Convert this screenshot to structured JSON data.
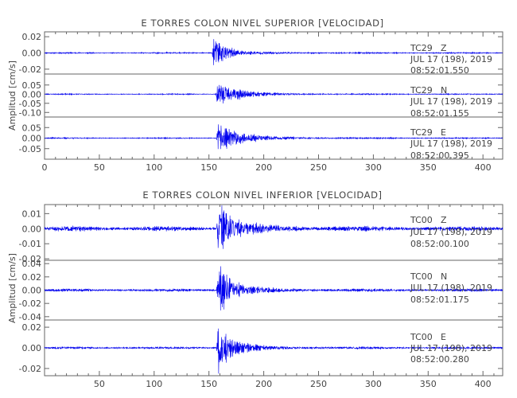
{
  "chart_data": [
    {
      "type": "line",
      "title": "E TORRES COLON NIVEL SUPERIOR [VELOCIDAD]",
      "ylabel": "Amplitud [cm/s]",
      "xlim": [
        0,
        418
      ],
      "xticks": [
        0,
        50,
        100,
        150,
        200,
        250,
        300,
        350,
        400
      ],
      "series_color": "#0000ee",
      "traces": [
        {
          "station": "TC29",
          "component": "Z",
          "date": "JUL 17 (198), 2019",
          "time": "08:52:01.550",
          "ylim": [
            -0.026,
            0.026
          ],
          "yticks": [
            -0.02,
            0.0,
            0.02
          ],
          "ytick_labels": [
            "-0.02",
            "0.00",
            "0.02"
          ],
          "wave": {
            "onset": 153,
            "peak": 0.018,
            "decay": 11,
            "noise": 0.0006,
            "seed": 11
          }
        },
        {
          "station": "TC29",
          "component": "N",
          "date": "JUL 17 (198), 2019",
          "time": "08:52:01.155",
          "ylim": [
            -0.125,
            0.11
          ],
          "yticks": [
            -0.1,
            -0.05,
            0.0,
            0.05
          ],
          "ytick_labels": [
            "-0.10",
            "-0.05",
            "0.00",
            "0.05"
          ],
          "wave": {
            "onset": 156,
            "peak": 0.06,
            "decay": 17,
            "noise": 0.002,
            "seed": 23
          }
        },
        {
          "station": "TC29",
          "component": "E",
          "date": "JUL 17 (198), 2019",
          "time": "08:52:00.395",
          "ylim": [
            -0.1,
            0.1
          ],
          "yticks": [
            -0.05,
            0.0,
            0.05
          ],
          "ytick_labels": [
            "-0.05",
            "0.00",
            "0.05"
          ],
          "wave": {
            "onset": 157,
            "peak": 0.06,
            "decay": 19,
            "noise": 0.002,
            "seed": 37
          }
        }
      ]
    },
    {
      "type": "line",
      "title": "E TORRES COLON NIVEL INFERIOR [VELOCIDAD]",
      "ylabel": "Amplitud [cm/s]",
      "xlim": [
        0,
        418
      ],
      "xticks": [
        50,
        100,
        150,
        200,
        250,
        300,
        350,
        400
      ],
      "series_color": "#0000ee",
      "traces": [
        {
          "station": "TC00",
          "component": "Z",
          "date": "JUL 17 (198), 2019",
          "time": "08:52:00.100",
          "ylim": [
            -0.021,
            0.016
          ],
          "yticks": [
            -0.02,
            -0.01,
            0.0,
            0.01
          ],
          "ytick_labels": [
            "-0.02",
            "-0.01",
            "0.00",
            "0.01"
          ],
          "wave": {
            "onset": 157,
            "peak": 0.014,
            "decay": 14,
            "noise": 0.0012,
            "seed": 51
          }
        },
        {
          "station": "TC00",
          "component": "N",
          "date": "JUL 17 (198), 2019",
          "time": "08:52:01.175",
          "ylim": [
            -0.045,
            0.045
          ],
          "yticks": [
            -0.04,
            -0.02,
            0.0,
            0.02,
            0.04
          ],
          "ytick_labels": [
            "-0.04",
            "-0.02",
            "0.00",
            "0.02",
            "0.04"
          ],
          "wave": {
            "onset": 157,
            "peak": 0.032,
            "decay": 12,
            "noise": 0.0015,
            "seed": 67
          }
        },
        {
          "station": "TC00",
          "component": "E",
          "date": "JUL 17 (198), 2019",
          "time": "08:52:00.280",
          "ylim": [
            -0.027,
            0.027
          ],
          "yticks": [
            -0.02,
            0.0,
            0.02
          ],
          "ytick_labels": [
            "-0.02",
            "0.00",
            "0.02"
          ],
          "wave": {
            "onset": 157,
            "peak": 0.02,
            "decay": 12,
            "noise": 0.0008,
            "seed": 83
          }
        }
      ]
    }
  ]
}
